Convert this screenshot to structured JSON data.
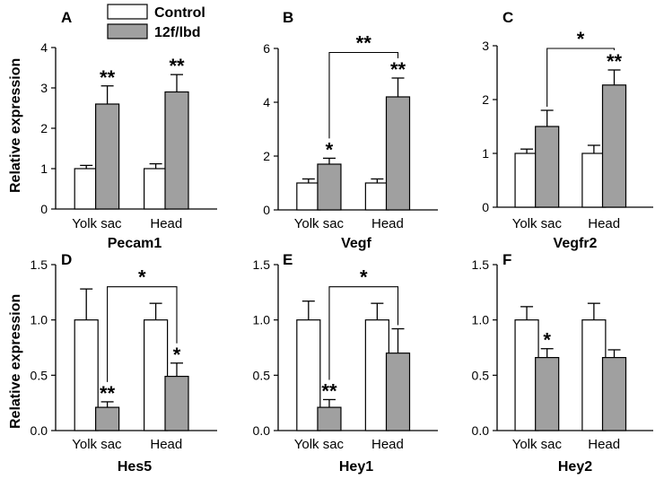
{
  "legend": {
    "control_label": "Control",
    "treated_label": "12f/lbd",
    "control_color": "#ffffff",
    "treated_color": "#a0a0a0"
  },
  "ylabel": "Relative expression",
  "chart_data": [
    {
      "type": "bar",
      "panel": "A",
      "gene": "Pecam1",
      "categories": [
        "Yolk sac",
        "Head"
      ],
      "ylim": [
        0,
        4
      ],
      "yticks": [
        "0",
        "1",
        "2",
        "3",
        "4"
      ],
      "series": [
        {
          "name": "Control",
          "values": [
            1.0,
            1.0
          ],
          "errors": [
            0.08,
            0.12
          ],
          "sig": [
            "",
            ""
          ]
        },
        {
          "name": "12f/lbd",
          "values": [
            2.6,
            2.9
          ],
          "errors": [
            0.45,
            0.43
          ],
          "sig": [
            "**",
            "**"
          ]
        }
      ],
      "bracket": null
    },
    {
      "type": "bar",
      "panel": "B",
      "gene": "Vegf",
      "categories": [
        "Yolk sac",
        "Head"
      ],
      "ylim": [
        0,
        6
      ],
      "yticks": [
        "0",
        "2",
        "4",
        "6"
      ],
      "series": [
        {
          "name": "Control",
          "values": [
            1.0,
            1.0
          ],
          "errors": [
            0.15,
            0.15
          ],
          "sig": [
            "",
            ""
          ]
        },
        {
          "name": "12f/lbd",
          "values": [
            1.7,
            4.2
          ],
          "errors": [
            0.22,
            0.7
          ],
          "sig": [
            "*",
            "**"
          ]
        }
      ],
      "bracket": {
        "label": "**",
        "from": 0,
        "to": 1,
        "y": 5.85
      }
    },
    {
      "type": "bar",
      "panel": "C",
      "gene": "Vegfr2",
      "categories": [
        "Yolk sac",
        "Head"
      ],
      "ylim": [
        0,
        3
      ],
      "yticks": [
        "0",
        "1",
        "2",
        "3"
      ],
      "series": [
        {
          "name": "Control",
          "values": [
            1.0,
            1.0
          ],
          "errors": [
            0.08,
            0.15
          ],
          "sig": [
            "",
            ""
          ]
        },
        {
          "name": "12f/lbd",
          "values": [
            1.5,
            2.27
          ],
          "errors": [
            0.3,
            0.28
          ],
          "sig": [
            "",
            "**"
          ]
        }
      ],
      "bracket": {
        "label": "*",
        "from": 0,
        "to": 1,
        "y": 2.95
      }
    },
    {
      "type": "bar",
      "panel": "D",
      "gene": "Hes5",
      "categories": [
        "Yolk sac",
        "Head"
      ],
      "ylim": [
        0,
        1.5
      ],
      "yticks": [
        "0.0",
        "0.5",
        "1.0",
        "1.5"
      ],
      "series": [
        {
          "name": "Control",
          "values": [
            1.0,
            1.0
          ],
          "errors": [
            0.28,
            0.15
          ],
          "sig": [
            "",
            ""
          ]
        },
        {
          "name": "12f/lbd",
          "values": [
            0.21,
            0.49
          ],
          "errors": [
            0.05,
            0.12
          ],
          "sig": [
            "**",
            "*"
          ]
        }
      ],
      "bracket": {
        "label": "*",
        "from": 0,
        "to": 1,
        "y": 1.3
      }
    },
    {
      "type": "bar",
      "panel": "E",
      "gene": "Hey1",
      "categories": [
        "Yolk sac",
        "Head"
      ],
      "ylim": [
        0,
        1.5
      ],
      "yticks": [
        "0.0",
        "0.5",
        "1.0",
        "1.5"
      ],
      "series": [
        {
          "name": "Control",
          "values": [
            1.0,
            1.0
          ],
          "errors": [
            0.17,
            0.15
          ],
          "sig": [
            "",
            ""
          ]
        },
        {
          "name": "12f/lbd",
          "values": [
            0.21,
            0.7
          ],
          "errors": [
            0.07,
            0.22
          ],
          "sig": [
            "**",
            ""
          ]
        }
      ],
      "bracket": {
        "label": "*",
        "from": 0,
        "to": 1,
        "y": 1.3
      }
    },
    {
      "type": "bar",
      "panel": "F",
      "gene": "Hey2",
      "categories": [
        "Yolk sac",
        "Head"
      ],
      "ylim": [
        0,
        1.5
      ],
      "yticks": [
        "0.0",
        "0.5",
        "1.0",
        "1.5"
      ],
      "series": [
        {
          "name": "Control",
          "values": [
            1.0,
            1.0
          ],
          "errors": [
            0.12,
            0.15
          ],
          "sig": [
            "",
            ""
          ]
        },
        {
          "name": "12f/lbd",
          "values": [
            0.66,
            0.66
          ],
          "errors": [
            0.08,
            0.07
          ],
          "sig": [
            "*",
            ""
          ]
        }
      ],
      "bracket": null
    }
  ]
}
